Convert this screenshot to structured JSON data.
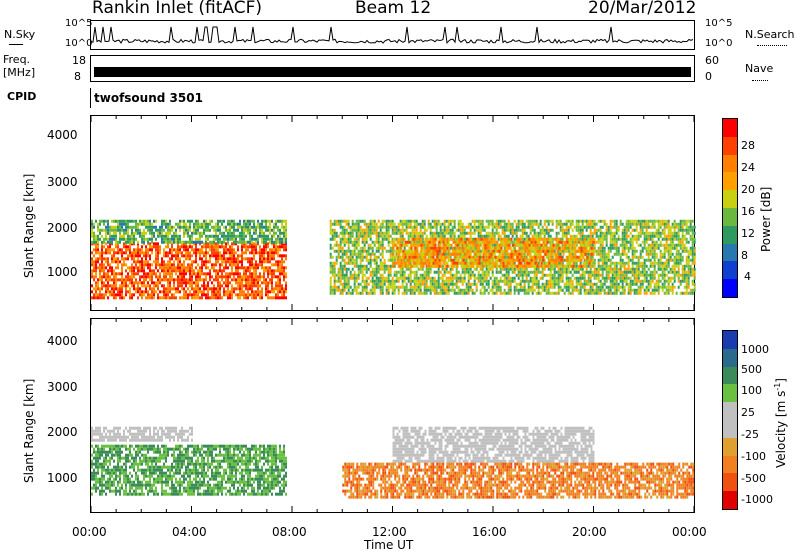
{
  "header": {
    "station": "Rankin Inlet (fitACF)",
    "beam": "Beam 12",
    "date": "20/Mar/2012"
  },
  "top_panels": {
    "nsky_label": "N.Sky",
    "nsky_ticks": [
      "10^5",
      "10^0"
    ],
    "nsearch_label": "N.Search",
    "nsearch_ticks": [
      "10^5",
      "10^0"
    ],
    "freq_label": "Freq.",
    "freq_unit": "[MHz]",
    "freq_ticks": [
      "18",
      "8"
    ],
    "nave_label": "Nave",
    "nave_ticks": [
      "60",
      "0"
    ],
    "cpid_label": "CPID",
    "cpid_value": "twofsound 3501"
  },
  "axes": {
    "ylabel": "Slant Range [km]",
    "yticks": [
      "4000",
      "3000",
      "2000",
      "1000"
    ],
    "xticks": [
      "00:00",
      "04:00",
      "08:00",
      "12:00",
      "16:00",
      "20:00",
      "00:00"
    ],
    "xlabel": "Time UT"
  },
  "colorbars": {
    "power": {
      "label": "Power [dB]",
      "ticks": [
        "28",
        "24",
        "20",
        "16",
        "12",
        "8",
        "4"
      ],
      "colors": [
        "#ff0000",
        "#ff4000",
        "#ff8000",
        "#ffa000",
        "#c8d010",
        "#6ab840",
        "#2e9a60",
        "#2878b0",
        "#1040d0",
        "#0000ff"
      ]
    },
    "velocity": {
      "label": "Velocity [m s",
      "label_sup": "-1",
      "label_end": "]",
      "ticks": [
        "1000",
        "500",
        "100",
        "25",
        "-25",
        "-100",
        "-500",
        "-1000"
      ],
      "colors": [
        "#1a3cb0",
        "#2a6a8a",
        "#3a8a5a",
        "#6ac040",
        "#c0c0c0",
        "#c0c0c0",
        "#e0a030",
        "#f08020",
        "#f05010",
        "#e00000"
      ]
    }
  },
  "chart_data": [
    {
      "type": "heatmap",
      "title": "",
      "xlabel": "",
      "ylabel": "Slant Range [km]",
      "quantity": "Power [dB]",
      "xlim": [
        "00:00",
        "00:00"
      ],
      "ylim": [
        200,
        4500
      ],
      "regions": [
        {
          "time": [
            "00:00",
            "07:45"
          ],
          "range_km": [
            500,
            1700
          ],
          "value_db": 26
        },
        {
          "time": [
            "00:00",
            "07:45"
          ],
          "range_km": [
            1700,
            2200
          ],
          "value_db": 14
        },
        {
          "time": [
            "09:30",
            "00:00"
          ],
          "range_km": [
            600,
            2200
          ],
          "value_db": 16
        },
        {
          "time": [
            "12:00",
            "20:00"
          ],
          "range_km": [
            1200,
            1800
          ],
          "value_db": 22
        }
      ]
    },
    {
      "type": "heatmap",
      "title": "",
      "xlabel": "Time UT",
      "ylabel": "Slant Range [km]",
      "quantity": "Velocity [m s-1]",
      "xlim": [
        "00:00",
        "00:00"
      ],
      "ylim": [
        200,
        4500
      ],
      "regions": [
        {
          "time": [
            "00:00",
            "07:45"
          ],
          "range_km": [
            600,
            1700
          ],
          "velocity_ms": 75
        },
        {
          "time": [
            "00:00",
            "04:00"
          ],
          "range_km": [
            1800,
            2100
          ],
          "velocity_ms": 0
        },
        {
          "time": [
            "12:00",
            "20:00"
          ],
          "range_km": [
            1300,
            2100
          ],
          "velocity_ms": 0
        },
        {
          "time": [
            "10:00",
            "00:00"
          ],
          "range_km": [
            500,
            1300
          ],
          "velocity_ms": -300
        }
      ]
    }
  ]
}
